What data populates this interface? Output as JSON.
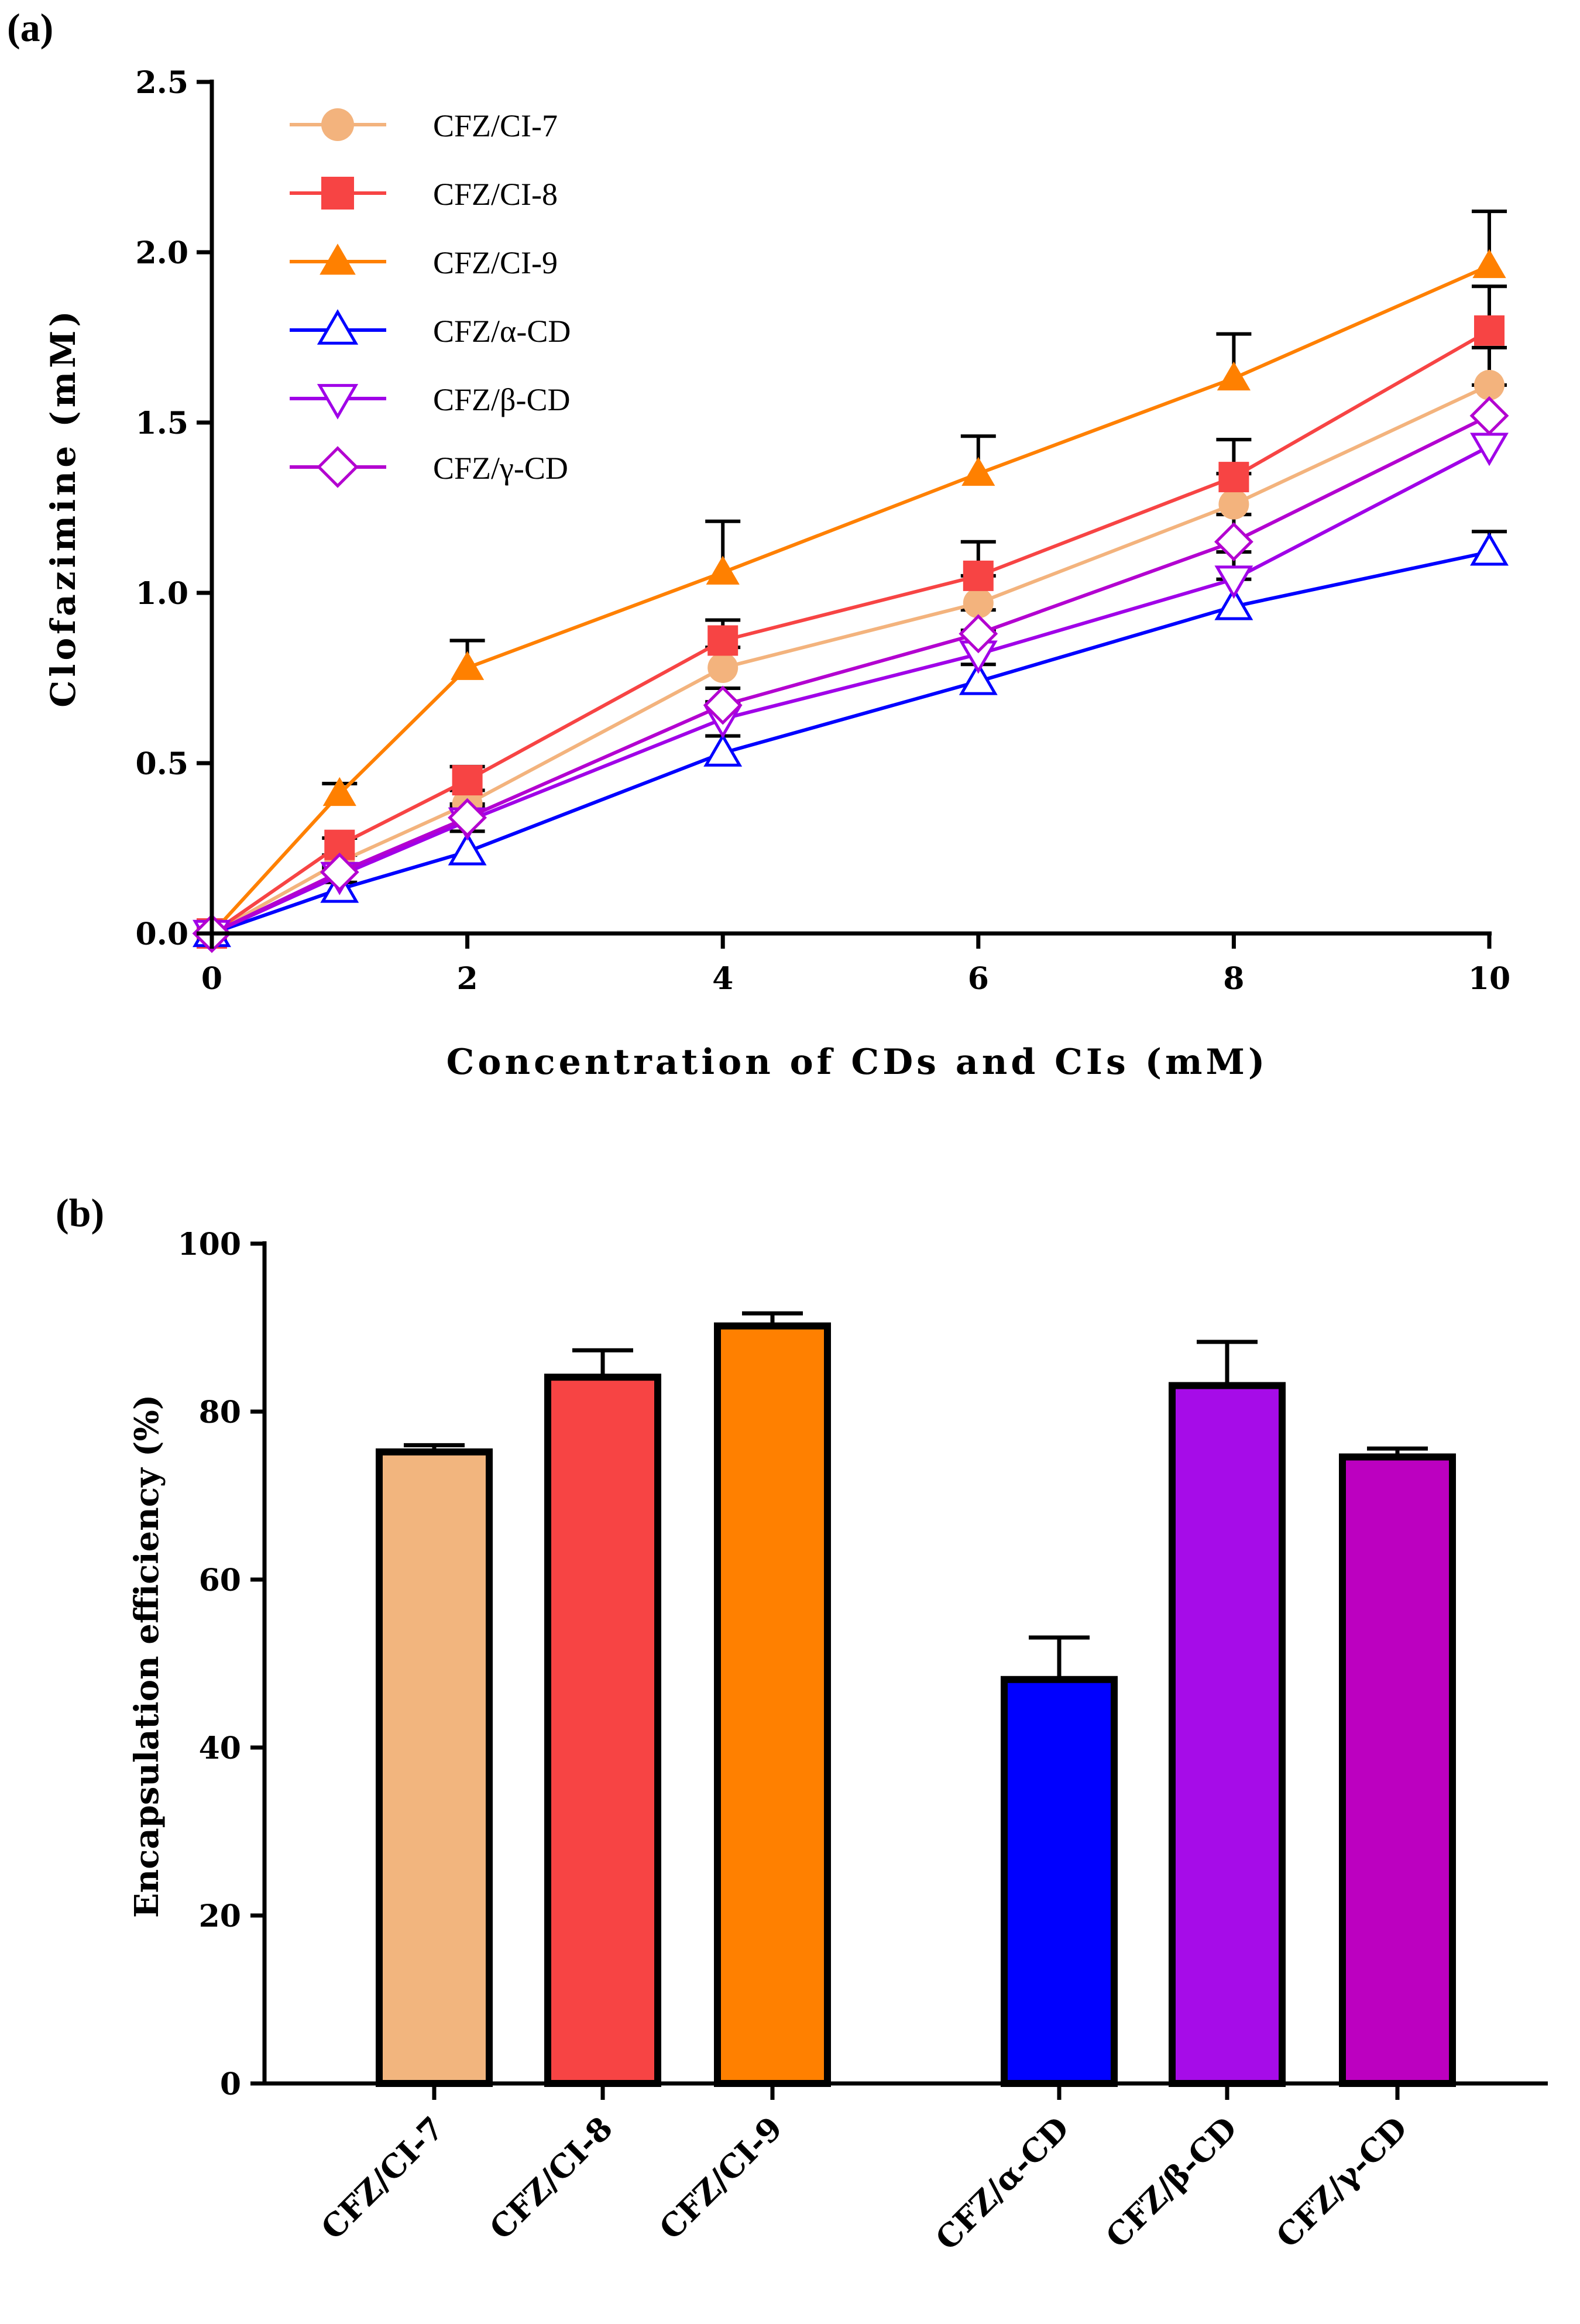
{
  "chart_data": [
    {
      "panel_label": "(a)",
      "type": "line",
      "xlabel": "Concentration of CDs and CIs (mM)",
      "ylabel": "Clofazimine (mM)",
      "xlim": [
        0,
        10
      ],
      "ylim": [
        0,
        2.5
      ],
      "x_ticks": [
        "0",
        "2",
        "4",
        "6",
        "8",
        "10"
      ],
      "x_tick_values": [
        0,
        2,
        4,
        6,
        8,
        10
      ],
      "y_ticks": [
        "0.0",
        "0.5",
        "1.0",
        "1.5",
        "2.0",
        "2.5"
      ],
      "y_tick_values": [
        0,
        0.5,
        1.0,
        1.5,
        2.0,
        2.5
      ],
      "x": [
        0,
        1,
        2,
        4,
        6,
        8,
        10
      ],
      "legend_position": "top-left",
      "series": [
        {
          "name": "CFZ/CI-7",
          "color": "#F3B37D",
          "marker": "circle",
          "filled": true,
          "values": [
            0,
            0.21,
            0.38,
            0.78,
            0.97,
            1.26,
            1.61
          ],
          "errors": [
            0,
            0.02,
            0.04,
            0.06,
            0.08,
            0.09,
            0.11
          ]
        },
        {
          "name": "CFZ/CI-8",
          "color": "#F74444",
          "marker": "square",
          "filled": true,
          "values": [
            0,
            0.26,
            0.45,
            0.86,
            1.05,
            1.34,
            1.77
          ],
          "errors": [
            0,
            0.02,
            0.04,
            0.06,
            0.1,
            0.11,
            0.13
          ]
        },
        {
          "name": "CFZ/CI-9",
          "color": "#FF8000",
          "marker": "triangle-up",
          "filled": true,
          "values": [
            0,
            0.41,
            0.78,
            1.06,
            1.35,
            1.63,
            1.96
          ],
          "errors": [
            0,
            0.03,
            0.08,
            0.15,
            0.11,
            0.13,
            0.16
          ]
        },
        {
          "name": "CFZ/α-CD",
          "color": "#0000FF",
          "marker": "triangle-up",
          "filled": false,
          "values": [
            0,
            0.13,
            0.24,
            0.53,
            0.74,
            0.96,
            1.12
          ],
          "errors": [
            0,
            0.02,
            0.06,
            0.05,
            0.05,
            0.08,
            0.06
          ]
        },
        {
          "name": "CFZ/β-CD",
          "color": "#A000E8",
          "marker": "triangle-down",
          "filled": false,
          "values": [
            0,
            0.17,
            0.33,
            0.63,
            0.82,
            1.04,
            1.43
          ],
          "errors": [
            0,
            0.02,
            0.04,
            0.05,
            0.07,
            0.08,
            0.09
          ]
        },
        {
          "name": "CFZ/γ-CD",
          "color": "#B300D0",
          "marker": "diamond",
          "filled": false,
          "values": [
            0,
            0.18,
            0.34,
            0.67,
            0.88,
            1.15,
            1.52
          ],
          "errors": [
            0,
            0.02,
            0.04,
            0.05,
            0.07,
            0.08,
            0.09
          ]
        }
      ]
    },
    {
      "panel_label": "(b)",
      "type": "bar",
      "ylabel": "Encapsulation efficiency (%)",
      "ylim": [
        0,
        100
      ],
      "y_ticks": [
        "0",
        "20",
        "40",
        "60",
        "80",
        "100"
      ],
      "y_tick_values": [
        0,
        20,
        40,
        60,
        80,
        100
      ],
      "categories": [
        "CFZ/CI-7",
        "CFZ/CI-8",
        "CFZ/CI-9",
        "CFZ/α-CD",
        "CFZ/β-CD",
        "CFZ/γ-CD"
      ],
      "values": [
        75.2,
        84.1,
        90.2,
        48.1,
        83.1,
        74.6
      ],
      "errors": [
        0.8,
        3.2,
        1.5,
        5.0,
        5.2,
        1.0
      ],
      "colors": [
        "#F2B57E",
        "#F74444",
        "#FF8000",
        "#0000FF",
        "#A60CE8",
        "#BC00C0"
      ]
    }
  ]
}
